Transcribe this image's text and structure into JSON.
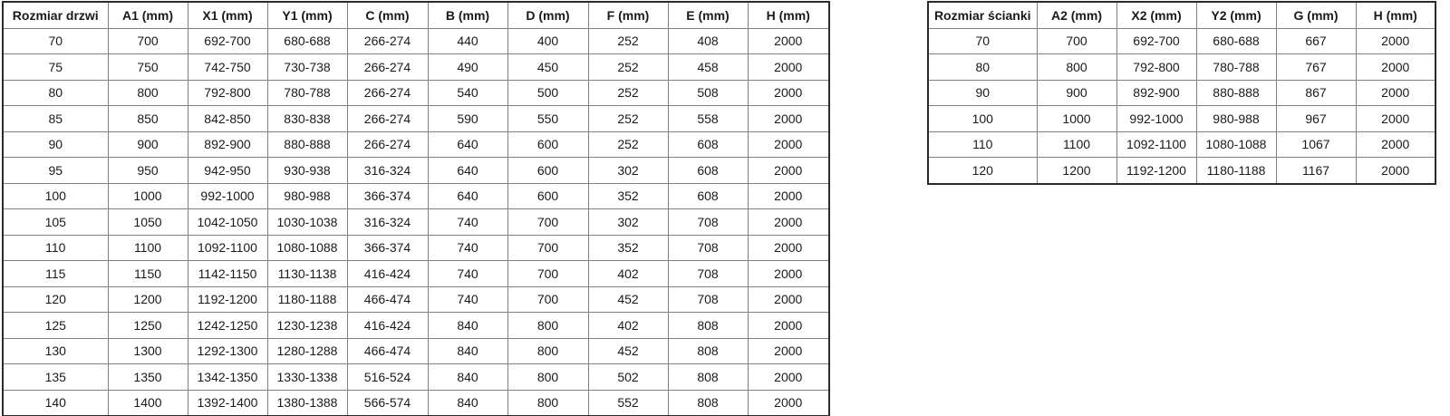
{
  "door_table": {
    "name": "Rozmiar drzwi",
    "headers": [
      "Rozmiar drzwi",
      "A1 (mm)",
      "X1 (mm)",
      "Y1 (mm)",
      "C (mm)",
      "B (mm)",
      "D (mm)",
      "F (mm)",
      "E (mm)",
      "H (mm)"
    ],
    "rows": [
      [
        "70",
        "700",
        "692-700",
        "680-688",
        "266-274",
        "440",
        "400",
        "252",
        "408",
        "2000"
      ],
      [
        "75",
        "750",
        "742-750",
        "730-738",
        "266-274",
        "490",
        "450",
        "252",
        "458",
        "2000"
      ],
      [
        "80",
        "800",
        "792-800",
        "780-788",
        "266-274",
        "540",
        "500",
        "252",
        "508",
        "2000"
      ],
      [
        "85",
        "850",
        "842-850",
        "830-838",
        "266-274",
        "590",
        "550",
        "252",
        "558",
        "2000"
      ],
      [
        "90",
        "900",
        "892-900",
        "880-888",
        "266-274",
        "640",
        "600",
        "252",
        "608",
        "2000"
      ],
      [
        "95",
        "950",
        "942-950",
        "930-938",
        "316-324",
        "640",
        "600",
        "302",
        "608",
        "2000"
      ],
      [
        "100",
        "1000",
        "992-1000",
        "980-988",
        "366-374",
        "640",
        "600",
        "352",
        "608",
        "2000"
      ],
      [
        "105",
        "1050",
        "1042-1050",
        "1030-1038",
        "316-324",
        "740",
        "700",
        "302",
        "708",
        "2000"
      ],
      [
        "110",
        "1100",
        "1092-1100",
        "1080-1088",
        "366-374",
        "740",
        "700",
        "352",
        "708",
        "2000"
      ],
      [
        "115",
        "1150",
        "1142-1150",
        "1130-1138",
        "416-424",
        "740",
        "700",
        "402",
        "708",
        "2000"
      ],
      [
        "120",
        "1200",
        "1192-1200",
        "1180-1188",
        "466-474",
        "740",
        "700",
        "452",
        "708",
        "2000"
      ],
      [
        "125",
        "1250",
        "1242-1250",
        "1230-1238",
        "416-424",
        "840",
        "800",
        "402",
        "808",
        "2000"
      ],
      [
        "130",
        "1300",
        "1292-1300",
        "1280-1288",
        "466-474",
        "840",
        "800",
        "452",
        "808",
        "2000"
      ],
      [
        "135",
        "1350",
        "1342-1350",
        "1330-1338",
        "516-524",
        "840",
        "800",
        "502",
        "808",
        "2000"
      ],
      [
        "140",
        "1400",
        "1392-1400",
        "1380-1388",
        "566-574",
        "840",
        "800",
        "552",
        "808",
        "2000"
      ]
    ]
  },
  "wall_table": {
    "name": "Rozmiar ścianki",
    "headers": [
      "Rozmiar ścianki",
      "A2 (mm)",
      "X2 (mm)",
      "Y2 (mm)",
      "G (mm)",
      "H (mm)"
    ],
    "rows": [
      [
        "70",
        "700",
        "692-700",
        "680-688",
        "667",
        "2000"
      ],
      [
        "80",
        "800",
        "792-800",
        "780-788",
        "767",
        "2000"
      ],
      [
        "90",
        "900",
        "892-900",
        "880-888",
        "867",
        "2000"
      ],
      [
        "100",
        "1000",
        "992-1000",
        "980-988",
        "967",
        "2000"
      ],
      [
        "110",
        "1100",
        "1092-1100",
        "1080-1088",
        "1067",
        "2000"
      ],
      [
        "120",
        "1200",
        "1192-1200",
        "1180-1188",
        "1167",
        "2000"
      ]
    ]
  },
  "colors": {
    "background": "#ffffff",
    "outer_border": "#2b2b2b",
    "inner_border": "#808080",
    "text": "#1a1a1a"
  }
}
